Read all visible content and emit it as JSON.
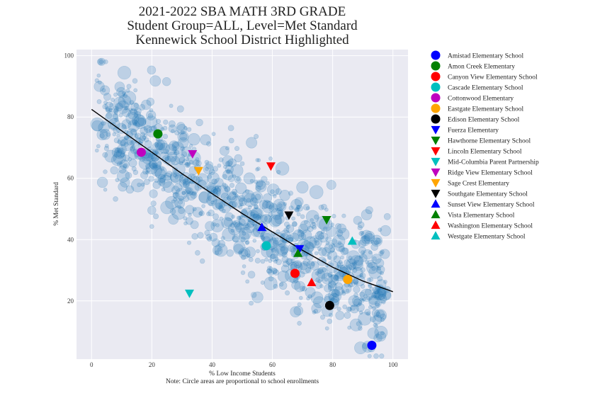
{
  "chart_data": {
    "type": "scatter",
    "title_lines": [
      "2021-2022 SBA MATH 3RD GRADE",
      "Student Group=ALL, Level=Met Standard",
      "Kennewick School District Highlighted"
    ],
    "xlabel": "% Low Income Students",
    "note": "Note: Circle areas are proportional to school enrollments",
    "ylabel": "% Met Standard",
    "xlim": [
      -5,
      105
    ],
    "ylim": [
      1,
      102
    ],
    "xticks": [
      0,
      20,
      40,
      60,
      80,
      100
    ],
    "yticks": [
      20,
      40,
      60,
      80,
      100
    ],
    "grid": true,
    "background": "#eaeaf2",
    "background_points_color": "#1f77b4",
    "background_points_note": "Approx. 1,000 faint translucent circles (statewide schools), negatively correlated with % Low Income",
    "trend_line": {
      "color": "#000000",
      "points": [
        [
          0,
          82.5
        ],
        [
          10,
          75.5
        ],
        [
          20,
          68.5
        ],
        [
          30,
          61.5
        ],
        [
          40,
          55
        ],
        [
          50,
          48.5
        ],
        [
          60,
          42.5
        ],
        [
          70,
          36.5
        ],
        [
          80,
          31
        ],
        [
          90,
          26.5
        ],
        [
          100,
          23
        ]
      ]
    },
    "legend_position": "right-outside",
    "highlighted": [
      {
        "name": "Amistad Elementary School",
        "marker": "circle",
        "color": "#0000ff",
        "x": 93,
        "y": 5.5
      },
      {
        "name": "Amon Creek Elementary",
        "marker": "circle",
        "color": "#008000",
        "x": 22,
        "y": 74.5
      },
      {
        "name": "Canyon View Elementary School",
        "marker": "circle",
        "color": "#ff0000",
        "x": 67.5,
        "y": 29
      },
      {
        "name": "Cascade Elementary School",
        "marker": "circle",
        "color": "#00bfbf",
        "x": 58,
        "y": 38
      },
      {
        "name": "Cottonwood Elementary",
        "marker": "circle",
        "color": "#bf00bf",
        "x": 16.5,
        "y": 68.5
      },
      {
        "name": "Eastgate Elementary School",
        "marker": "circle",
        "color": "#ffa500",
        "x": 85,
        "y": 27
      },
      {
        "name": "Edison Elementary School",
        "marker": "circle",
        "color": "#000000",
        "x": 79,
        "y": 18.5
      },
      {
        "name": "Fuerza Elementary",
        "marker": "triangle-down",
        "color": "#0000ff",
        "x": 69,
        "y": 37
      },
      {
        "name": "Hawthorne Elementary School",
        "marker": "triangle-down",
        "color": "#008000",
        "x": 78,
        "y": 46.5
      },
      {
        "name": "Lincoln Elementary School",
        "marker": "triangle-down",
        "color": "#ff0000",
        "x": 59.5,
        "y": 64
      },
      {
        "name": "Mid-Columbia Parent Partnership",
        "marker": "triangle-down",
        "color": "#00bfbf",
        "x": 32.5,
        "y": 22.5
      },
      {
        "name": "Ridge View Elementary School",
        "marker": "triangle-down",
        "color": "#bf00bf",
        "x": 33.5,
        "y": 68
      },
      {
        "name": "Sage Crest Elementary",
        "marker": "triangle-down",
        "color": "#ffa500",
        "x": 35.5,
        "y": 62.5
      },
      {
        "name": "Southgate Elementary School",
        "marker": "triangle-down",
        "color": "#000000",
        "x": 65.5,
        "y": 48
      },
      {
        "name": "Sunset View Elementary School",
        "marker": "triangle-up",
        "color": "#0000ff",
        "x": 56.5,
        "y": 44
      },
      {
        "name": "Vista Elementary School",
        "marker": "triangle-up",
        "color": "#008000",
        "x": 68.5,
        "y": 35.5
      },
      {
        "name": "Washington Elementary School",
        "marker": "triangle-up",
        "color": "#ff0000",
        "x": 73,
        "y": 26
      },
      {
        "name": "Westgate Elementary School",
        "marker": "triangle-up",
        "color": "#00bfbf",
        "x": 86.5,
        "y": 39.5
      }
    ]
  }
}
